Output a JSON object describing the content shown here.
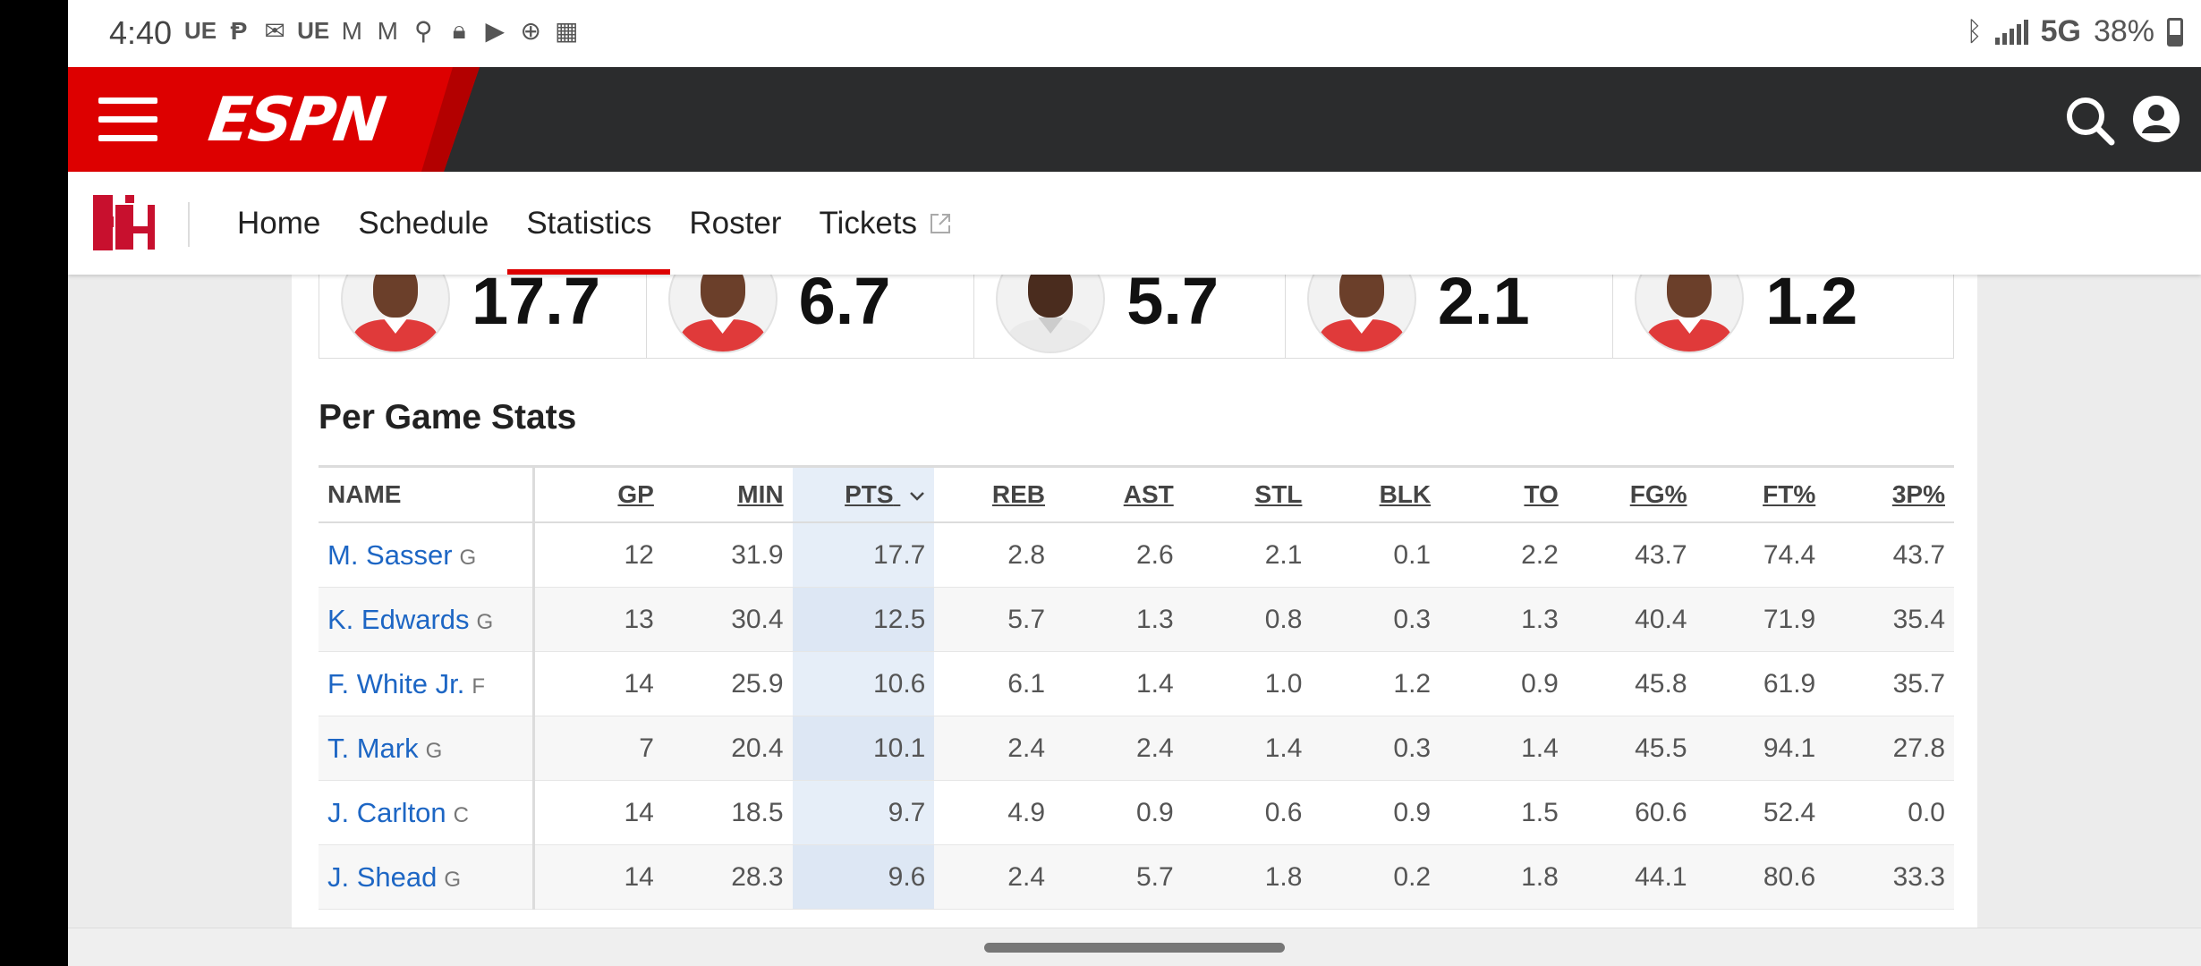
{
  "status_bar": {
    "time": "4:40",
    "left_icons": [
      "UE",
      "parking-icon",
      "mail-icon",
      "UE",
      "gmail-icon",
      "gmail-icon",
      "location-icon",
      "lock-icon",
      "youtube-icon",
      "basketball-icon",
      "calendar-icon"
    ],
    "network": "5G",
    "battery": "38%"
  },
  "espn_header": {
    "logo_text": "ESPN"
  },
  "team_nav": {
    "tabs": [
      {
        "label": "Home"
      },
      {
        "label": "Schedule"
      },
      {
        "label": "Statistics"
      },
      {
        "label": "Roster"
      },
      {
        "label": "Tickets"
      }
    ],
    "active_tab": "Statistics"
  },
  "leaders": [
    {
      "value": "17.7"
    },
    {
      "value": "6.7"
    },
    {
      "value": "5.7"
    },
    {
      "value": "2.1"
    },
    {
      "value": "1.2"
    }
  ],
  "per_game": {
    "title": "Per Game Stats",
    "columns": [
      "NAME",
      "GP",
      "MIN",
      "PTS",
      "REB",
      "AST",
      "STL",
      "BLK",
      "TO",
      "FG%",
      "FT%",
      "3P%"
    ],
    "sorted_column": "PTS",
    "rows": [
      {
        "name": "M. Sasser",
        "pos": "G",
        "stats": [
          "12",
          "31.9",
          "17.7",
          "2.8",
          "2.6",
          "2.1",
          "0.1",
          "2.2",
          "43.7",
          "74.4",
          "43.7"
        ]
      },
      {
        "name": "K. Edwards",
        "pos": "G",
        "stats": [
          "13",
          "30.4",
          "12.5",
          "5.7",
          "1.3",
          "0.8",
          "0.3",
          "1.3",
          "40.4",
          "71.9",
          "35.4"
        ]
      },
      {
        "name": "F. White Jr.",
        "pos": "F",
        "stats": [
          "14",
          "25.9",
          "10.6",
          "6.1",
          "1.4",
          "1.0",
          "1.2",
          "0.9",
          "45.8",
          "61.9",
          "35.7"
        ]
      },
      {
        "name": "T. Mark",
        "pos": "G",
        "stats": [
          "7",
          "20.4",
          "10.1",
          "2.4",
          "2.4",
          "1.4",
          "0.3",
          "1.4",
          "45.5",
          "94.1",
          "27.8"
        ]
      },
      {
        "name": "J. Carlton",
        "pos": "C",
        "stats": [
          "14",
          "18.5",
          "9.7",
          "4.9",
          "0.9",
          "0.6",
          "0.9",
          "1.5",
          "60.6",
          "52.4",
          "0.0"
        ]
      },
      {
        "name": "J. Shead",
        "pos": "G",
        "stats": [
          "14",
          "28.3",
          "9.6",
          "2.4",
          "5.7",
          "1.8",
          "0.2",
          "1.8",
          "44.1",
          "80.6",
          "33.3"
        ]
      }
    ]
  },
  "colors": {
    "espn_red": "#d00000",
    "header_dark": "#2b2c2d",
    "link_blue": "#1d66c4",
    "sorted_col_bg": "#e6eef8"
  }
}
